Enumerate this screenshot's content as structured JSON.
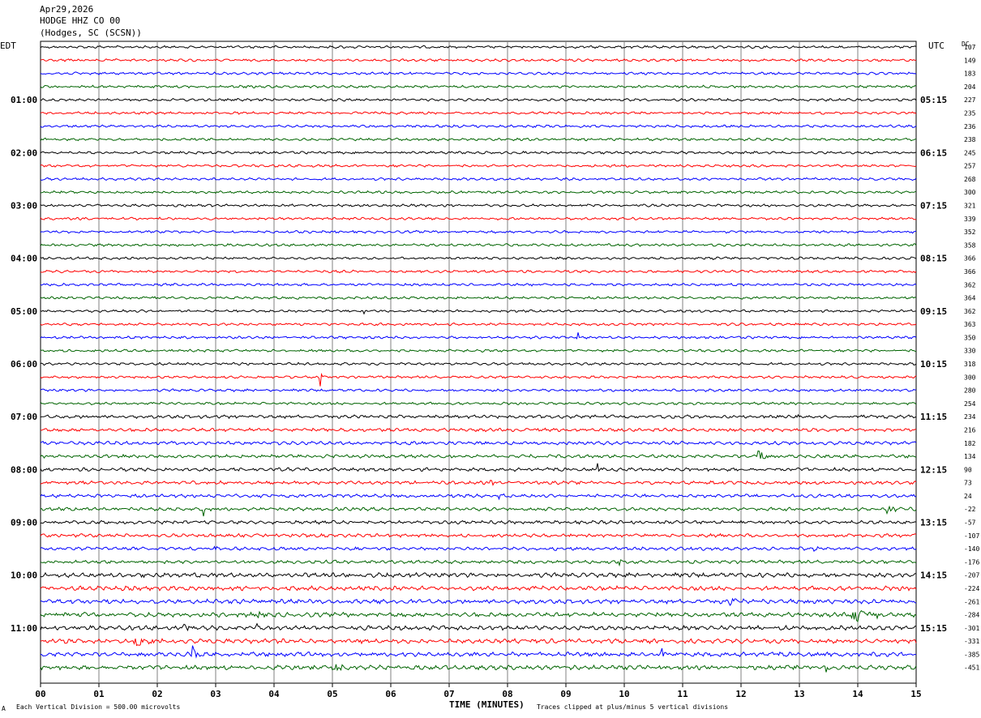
{
  "header": {
    "date": "Apr29,2026",
    "station": "HODGE HHZ CO 00",
    "location": "(Hodges, SC (SCSN))"
  },
  "left_zone_label": "EDT",
  "right_zone_label": "UTC",
  "dc_label": "DC",
  "footer": {
    "scale_note": "Each Vertical Division =  500.00 microvolts",
    "clip_note": "Traces clipped at plus/minus 5 vertical divisions",
    "corner_mark": "A"
  },
  "chart_data": {
    "type": "line",
    "title": "",
    "xlabel": "TIME (MINUTES)",
    "ylabel": "",
    "xlim": [
      0,
      15
    ],
    "x_ticks": [
      "00",
      "01",
      "02",
      "03",
      "04",
      "05",
      "06",
      "07",
      "08",
      "09",
      "10",
      "11",
      "12",
      "13",
      "14",
      "15"
    ],
    "row_count": 48,
    "trace_colors": [
      "#000000",
      "#ff0000",
      "#0000ff",
      "#006400"
    ],
    "left_time_labels": [
      "01:00",
      "02:00",
      "03:00",
      "04:00",
      "05:00",
      "06:00",
      "07:00",
      "08:00",
      "09:00",
      "10:00",
      "11:00"
    ],
    "right_time_labels": [
      "05:15",
      "06:15",
      "07:15",
      "08:15",
      "09:15",
      "10:15",
      "11:15",
      "12:15",
      "13:15",
      "14:15",
      "15:15"
    ],
    "hour_label_rows": [
      4,
      8,
      12,
      16,
      20,
      24,
      28,
      32,
      36,
      40,
      44
    ],
    "dc_offsets": [
      107,
      149,
      183,
      204,
      227,
      235,
      236,
      238,
      245,
      257,
      268,
      300,
      321,
      339,
      352,
      358,
      366,
      366,
      362,
      364,
      362,
      363,
      350,
      330,
      318,
      300,
      280,
      254,
      234,
      216,
      182,
      134,
      90,
      73,
      24,
      -22,
      -57,
      -107,
      -140,
      -176,
      -207,
      -224,
      -261,
      -284,
      -301,
      -331,
      -385,
      -451
    ],
    "events": [
      {
        "row": 20,
        "minute": 5.55,
        "amp": 10,
        "len": 0.04
      },
      {
        "row": 22,
        "minute": 9.2,
        "amp": 22,
        "len": 0.04
      },
      {
        "row": 25,
        "minute": 4.8,
        "amp": 8,
        "len": 0.04
      },
      {
        "row": 31,
        "minute": 12.3,
        "amp": 14,
        "len": 0.15
      },
      {
        "row": 32,
        "minute": 9.55,
        "amp": 6,
        "len": 0.05
      },
      {
        "row": 33,
        "minute": 7.7,
        "amp": 8,
        "len": 0.1
      },
      {
        "row": 34,
        "minute": 7.85,
        "amp": 9,
        "len": 0.25
      },
      {
        "row": 35,
        "minute": 14.5,
        "amp": 12,
        "len": 0.2
      },
      {
        "row": 35,
        "minute": 2.8,
        "amp": 7,
        "len": 0.05
      },
      {
        "row": 38,
        "minute": 2.95,
        "amp": 6,
        "len": 0.1
      },
      {
        "row": 38,
        "minute": 13.25,
        "amp": 6,
        "len": 0.15
      },
      {
        "row": 39,
        "minute": 9.9,
        "amp": 8,
        "len": 0.06
      },
      {
        "row": 42,
        "minute": 11.8,
        "amp": 5,
        "len": 0.4
      },
      {
        "row": 42,
        "minute": 13.15,
        "amp": 7,
        "len": 0.1
      },
      {
        "row": 43,
        "minute": 3.7,
        "amp": 10,
        "len": 0.1
      },
      {
        "row": 43,
        "minute": 13.9,
        "amp": 8,
        "len": 0.8
      },
      {
        "row": 44,
        "minute": 2.45,
        "amp": 6,
        "len": 0.35
      },
      {
        "row": 44,
        "minute": 3.7,
        "amp": 12,
        "len": 0.05
      },
      {
        "row": 45,
        "minute": 1.6,
        "amp": 6,
        "len": 0.6
      },
      {
        "row": 46,
        "minute": 2.6,
        "amp": 16,
        "len": 0.15
      },
      {
        "row": 46,
        "minute": 10.65,
        "amp": 7,
        "len": 0.2
      },
      {
        "row": 47,
        "minute": 13.45,
        "amp": 14,
        "len": 0.1
      },
      {
        "row": 47,
        "minute": 5.0,
        "amp": 6,
        "len": 0.3
      }
    ]
  }
}
